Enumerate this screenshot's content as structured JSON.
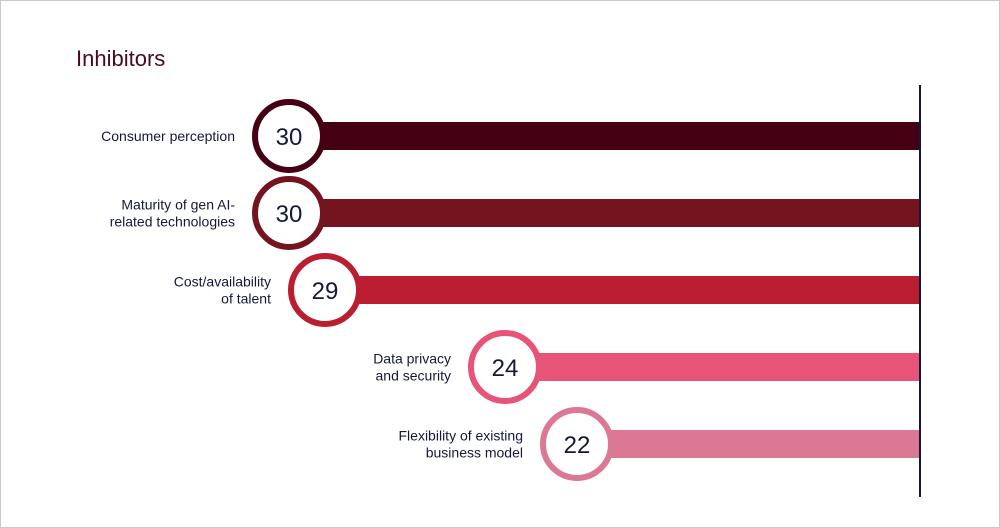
{
  "chart_data": {
    "type": "bar",
    "orientation": "horizontal",
    "title": "Inhibitors",
    "xlabel": "",
    "ylabel": "",
    "categories": [
      [
        "Consumer perception"
      ],
      [
        "Maturity of gen AI-",
        "related technologies"
      ],
      [
        "Cost/availability",
        "of talent"
      ],
      [
        "Data privacy",
        "and security"
      ],
      [
        "Flexibility of existing",
        "business model"
      ]
    ],
    "values": [
      30,
      30,
      29,
      24,
      22
    ],
    "value_labels": [
      "30",
      "30",
      "29",
      "24",
      "22"
    ],
    "colors": [
      "#450014",
      "#74141f",
      "#b91f31",
      "#e85478",
      "#db7893"
    ],
    "grid": false,
    "legend": "none"
  }
}
